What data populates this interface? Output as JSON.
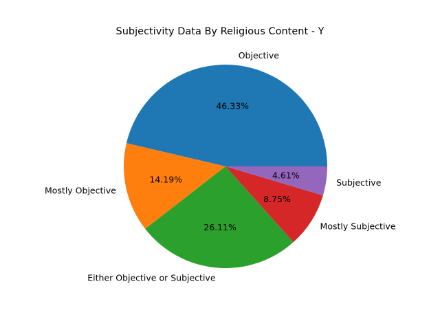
{
  "chart_data": {
    "type": "pie",
    "title": "Subjectivity Data By Religious Content - Y",
    "start_angle_deg": 0,
    "direction": "counterclockwise",
    "slices": [
      {
        "label": "Objective",
        "value": 46.33,
        "pct_label": "46.33%",
        "color": "#1f77b4"
      },
      {
        "label": "Mostly Objective",
        "value": 14.19,
        "pct_label": "14.19%",
        "color": "#ff7f0e"
      },
      {
        "label": "Either Objective or Subjective",
        "value": 26.11,
        "pct_label": "26.11%",
        "color": "#2ca02c"
      },
      {
        "label": "Mostly Subjective",
        "value": 8.75,
        "pct_label": "8.75%",
        "color": "#d62728"
      },
      {
        "label": "Subjective",
        "value": 4.61,
        "pct_label": "4.61%",
        "color": "#9467bd"
      }
    ]
  }
}
